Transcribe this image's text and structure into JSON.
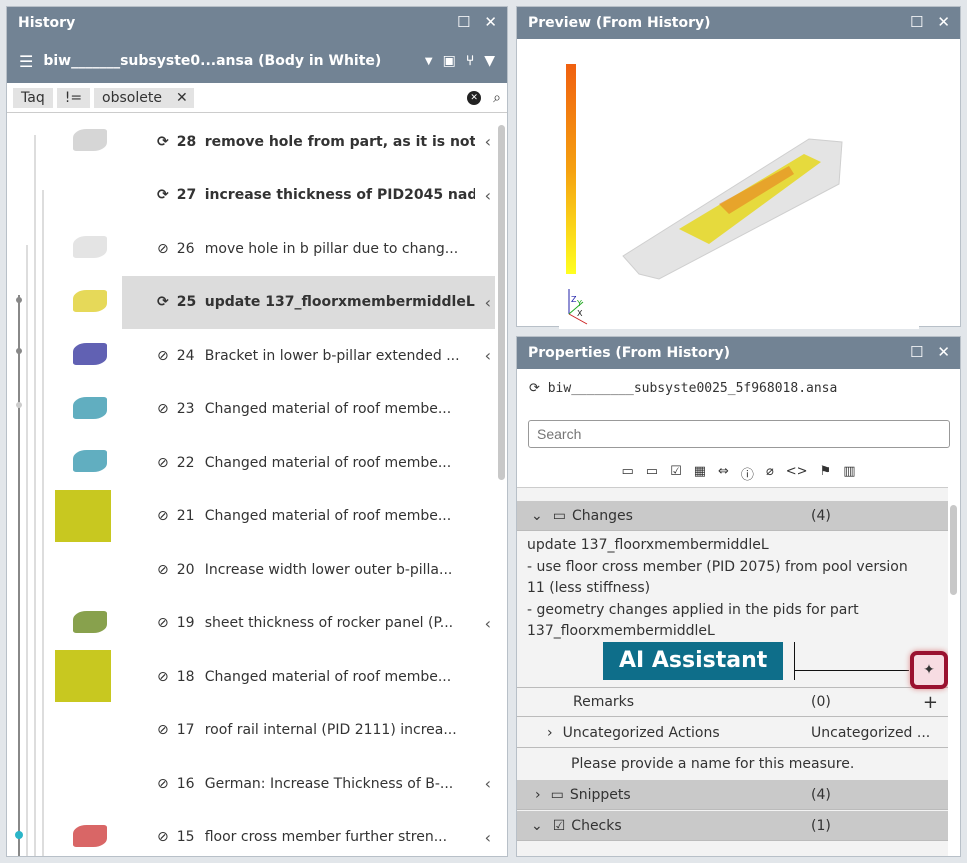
{
  "history": {
    "title": "History",
    "model": "biw_______subsyste0...ansa (Body in White)",
    "filter": {
      "field": "Taq",
      "op": "!=",
      "value": "obsolete"
    },
    "items": [
      {
        "num": "28",
        "text": "remove hole from part, as it is not.",
        "status": "sync",
        "bold": true,
        "chevron": true
      },
      {
        "num": "27",
        "text": "increase thickness of PID2045 nad.",
        "status": "sync",
        "bold": true,
        "chevron": true
      },
      {
        "num": "26",
        "text": "move hole in b pillar due to chang...",
        "status": "check",
        "bold": false,
        "chevron": false
      },
      {
        "num": "25",
        "text": "update 137_floorxmembermiddleL",
        "status": "sync",
        "bold": true,
        "chevron": true,
        "selected": true
      },
      {
        "num": "24",
        "text": "Bracket in lower b-pillar extended ...",
        "status": "check",
        "bold": false,
        "chevron": true
      },
      {
        "num": "23",
        "text": "Changed material of roof membe...",
        "status": "check",
        "bold": false,
        "chevron": false
      },
      {
        "num": "22",
        "text": "Changed material of roof membe...",
        "status": "check",
        "bold": false,
        "chevron": false
      },
      {
        "num": "21",
        "text": "Changed material of roof membe...",
        "status": "check",
        "bold": false,
        "chevron": false
      },
      {
        "num": "20",
        "text": "Increase width lower outer b-pilla...",
        "status": "check",
        "bold": false,
        "chevron": false
      },
      {
        "num": "19",
        "text": "sheet thickness of rocker panel (P...",
        "status": "check",
        "bold": false,
        "chevron": true
      },
      {
        "num": "18",
        "text": "Changed material of roof membe...",
        "status": "check",
        "bold": false,
        "chevron": false
      },
      {
        "num": "17",
        "text": "roof rail internal (PID 2111) increa...",
        "status": "check",
        "bold": false,
        "chevron": false
      },
      {
        "num": "16",
        "text": "German: Increase Thickness of B-...",
        "status": "check",
        "bold": false,
        "chevron": true
      },
      {
        "num": "15",
        "text": "floor cross member further stren...",
        "status": "check",
        "bold": false,
        "chevron": true
      }
    ]
  },
  "preview": {
    "title": "Preview (From History)",
    "axis_labels": [
      "Z",
      "Y",
      "X"
    ]
  },
  "properties": {
    "title": "Properties (From History)",
    "file": "biw________subsyste0025_5f968018.ansa",
    "search_placeholder": "Search",
    "changes": {
      "label": "Changes",
      "count": "(4)",
      "lines": [
        "update 137_floorxmembermiddleL",
        "- use floor cross member (PID 2075) from pool version",
        "11 (less stiffness)",
        "- geometry changes applied in the pids for part",
        "137_floorxmembermiddleL"
      ]
    },
    "ai_assistant": "AI Assistant",
    "remarks": {
      "label": "Remarks",
      "count": "(0)"
    },
    "uncat": {
      "label": "Uncategorized Actions",
      "value": "Uncategorized ..."
    },
    "measure_hint": "Please provide a name for this measure.",
    "snippets": {
      "label": "Snippets",
      "count": "(4)"
    },
    "checks": {
      "label": "Checks",
      "count": "(1)"
    }
  },
  "colors": {
    "titlebar": "#728394",
    "ai_label": "#0e6e8a",
    "highlight": "#9a1230"
  }
}
